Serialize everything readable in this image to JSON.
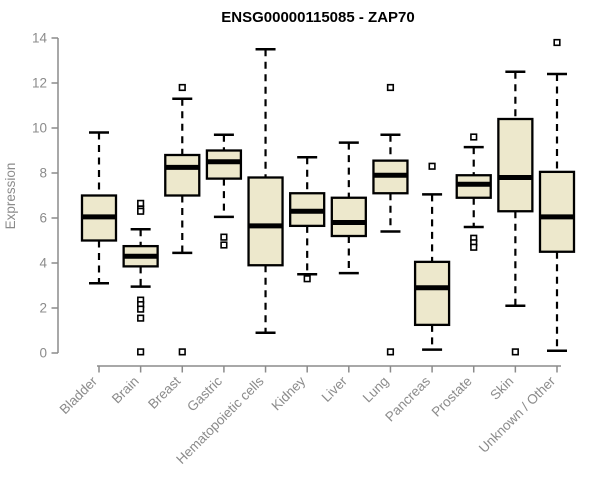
{
  "chart_data": {
    "type": "boxplot",
    "title": "ENSG00000115085 - ZAP70",
    "xlabel": "",
    "ylabel": "Expression",
    "ylim": [
      0,
      14
    ],
    "yticks": [
      0,
      2,
      4,
      6,
      8,
      10,
      12,
      14
    ],
    "grid": false,
    "legend": "none",
    "categories": [
      "Bladder",
      "Brain",
      "Breast",
      "Gastric",
      "Hematopoietic cells",
      "Kidney",
      "Liver",
      "Lung",
      "Pancreas",
      "Prostate",
      "Skin",
      "Unknown / Other"
    ],
    "series": [
      {
        "label": "Bladder",
        "whisker_low": 3.1,
        "q1": 5.0,
        "median": 6.05,
        "q3": 7.0,
        "whisker_high": 9.8,
        "outliers": []
      },
      {
        "label": "Brain",
        "whisker_low": 2.95,
        "q1": 3.85,
        "median": 4.3,
        "q3": 4.75,
        "whisker_high": 5.5,
        "outliers": [
          6.65,
          6.4,
          6.3,
          2.35,
          2.15,
          1.95,
          1.55,
          0.05
        ]
      },
      {
        "label": "Breast",
        "whisker_low": 4.45,
        "q1": 7.0,
        "median": 8.25,
        "q3": 8.8,
        "whisker_high": 11.3,
        "outliers": [
          11.8,
          0.05
        ]
      },
      {
        "label": "Gastric",
        "whisker_low": 6.05,
        "q1": 7.75,
        "median": 8.5,
        "q3": 9.0,
        "whisker_high": 9.7,
        "outliers": [
          5.15,
          4.8
        ]
      },
      {
        "label": "Hematopoietic cells",
        "whisker_low": 0.9,
        "q1": 3.9,
        "median": 5.65,
        "q3": 7.8,
        "whisker_high": 13.5,
        "outliers": []
      },
      {
        "label": "Kidney",
        "whisker_low": 3.5,
        "q1": 5.65,
        "median": 6.3,
        "q3": 7.1,
        "whisker_high": 8.7,
        "outliers": [
          3.3
        ]
      },
      {
        "label": "Liver",
        "whisker_low": 3.55,
        "q1": 5.2,
        "median": 5.8,
        "q3": 6.9,
        "whisker_high": 9.35,
        "outliers": []
      },
      {
        "label": "Lung",
        "whisker_low": 5.4,
        "q1": 7.1,
        "median": 7.9,
        "q3": 8.55,
        "whisker_high": 9.7,
        "outliers": [
          11.8,
          0.05
        ]
      },
      {
        "label": "Pancreas",
        "whisker_low": 0.15,
        "q1": 1.25,
        "median": 2.9,
        "q3": 4.05,
        "whisker_high": 7.05,
        "outliers": [
          8.3
        ]
      },
      {
        "label": "Prostate",
        "whisker_low": 5.6,
        "q1": 6.9,
        "median": 7.5,
        "q3": 7.9,
        "whisker_high": 9.15,
        "outliers": [
          9.6,
          5.1,
          4.9,
          4.7
        ]
      },
      {
        "label": "Skin",
        "whisker_low": 2.1,
        "q1": 6.3,
        "median": 7.8,
        "q3": 10.4,
        "whisker_high": 12.5,
        "outliers": [
          0.05
        ]
      },
      {
        "label": "Unknown / Other",
        "whisker_low": 0.1,
        "q1": 4.5,
        "median": 6.05,
        "q3": 8.05,
        "whisker_high": 12.4,
        "outliers": [
          13.8
        ]
      }
    ],
    "colors": {
      "box_fill": "#EDE8CC",
      "box_stroke": "#000000",
      "median": "#000000",
      "outlier_stroke": "#000000",
      "outlier_fill": "#ffffff",
      "axis": "#8b8b8b",
      "tick_text": "#8b8b8b",
      "title_text": "#000000",
      "background": "#ffffff"
    }
  }
}
